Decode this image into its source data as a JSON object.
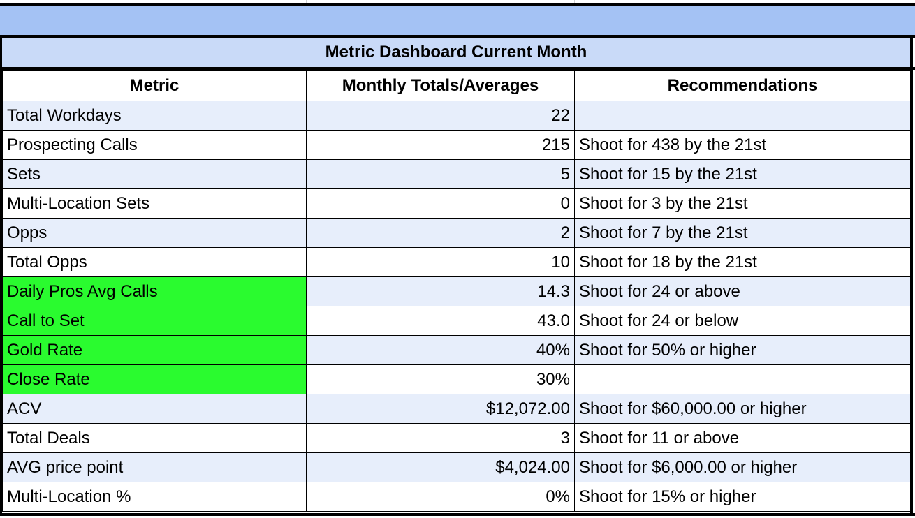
{
  "title": "Metric Dashboard Current Month",
  "headers": {
    "metric": "Metric",
    "totals": "Monthly Totals/Averages",
    "recommendations": "Recommendations"
  },
  "rows": [
    {
      "metric": "Total Workdays",
      "value": "22",
      "recommendation": "",
      "highlight": false
    },
    {
      "metric": "Prospecting Calls",
      "value": "215",
      "recommendation": "Shoot for 438 by the 21st",
      "highlight": false
    },
    {
      "metric": "Sets",
      "value": "5",
      "recommendation": "Shoot for 15 by the 21st",
      "highlight": false
    },
    {
      "metric": "Multi-Location Sets",
      "value": "0",
      "recommendation": "Shoot for 3 by the 21st",
      "highlight": false
    },
    {
      "metric": "Opps",
      "value": "2",
      "recommendation": "Shoot for 7 by the 21st",
      "highlight": false
    },
    {
      "metric": "Total Opps",
      "value": "10",
      "recommendation": "Shoot for 18 by the 21st",
      "highlight": false
    },
    {
      "metric": "Daily Pros Avg Calls",
      "value": "14.3",
      "recommendation": "Shoot for 24 or above",
      "highlight": true
    },
    {
      "metric": "Call to Set",
      "value": "43.0",
      "recommendation": "Shoot for 24 or below",
      "highlight": true
    },
    {
      "metric": "Gold Rate",
      "value": "40%",
      "recommendation": "Shoot for 50% or higher",
      "highlight": true
    },
    {
      "metric": "Close Rate",
      "value": "30%",
      "recommendation": "",
      "highlight": true
    },
    {
      "metric": "ACV",
      "value": "$12,072.00",
      "recommendation": "Shoot for $60,000.00 or higher",
      "highlight": false
    },
    {
      "metric": "Total Deals",
      "value": "3",
      "recommendation": "Shoot for 11 or above",
      "highlight": false
    },
    {
      "metric": "AVG price point",
      "value": "$4,024.00",
      "recommendation": "Shoot for $6,000.00 or higher",
      "highlight": false
    },
    {
      "metric": "Multi-Location %",
      "value": "0%",
      "recommendation": "Shoot for 15% or higher",
      "highlight": false
    }
  ],
  "colors": {
    "header_band": "#a4c2f4",
    "title_band": "#c9daf8",
    "row_band": "#e7eefb",
    "highlight": "#2afb2f"
  }
}
